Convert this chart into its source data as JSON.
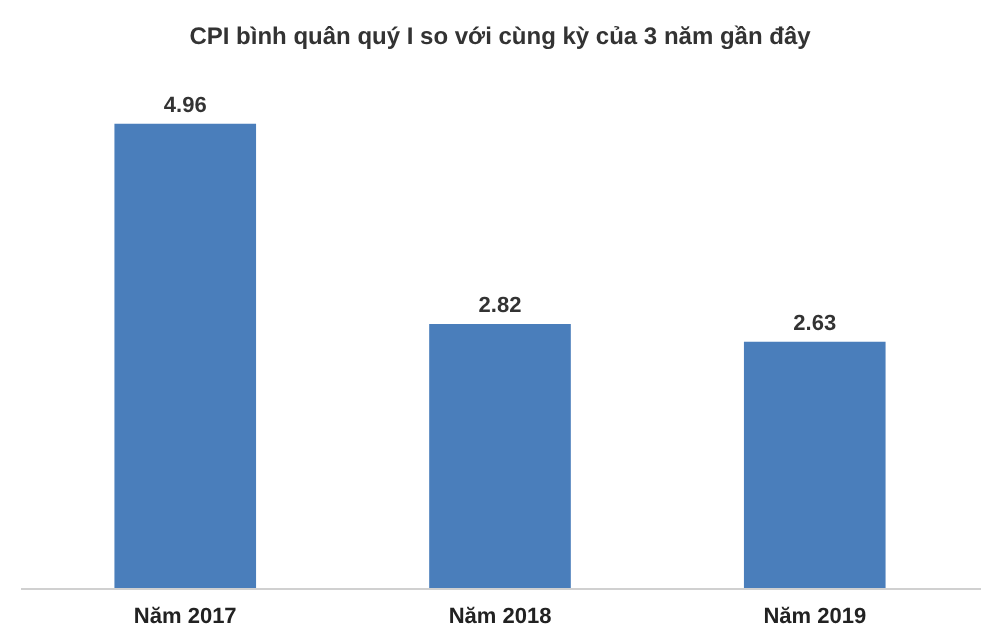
{
  "chart_data": {
    "type": "bar",
    "title": "CPI bình quân quý I so với cùng kỳ của 3 năm gần đây",
    "categories": [
      "Năm 2017",
      "Năm 2018",
      "Năm 2019"
    ],
    "values": [
      4.96,
      2.82,
      2.63
    ],
    "color": "#4a7ebb",
    "data_labels": true
  }
}
